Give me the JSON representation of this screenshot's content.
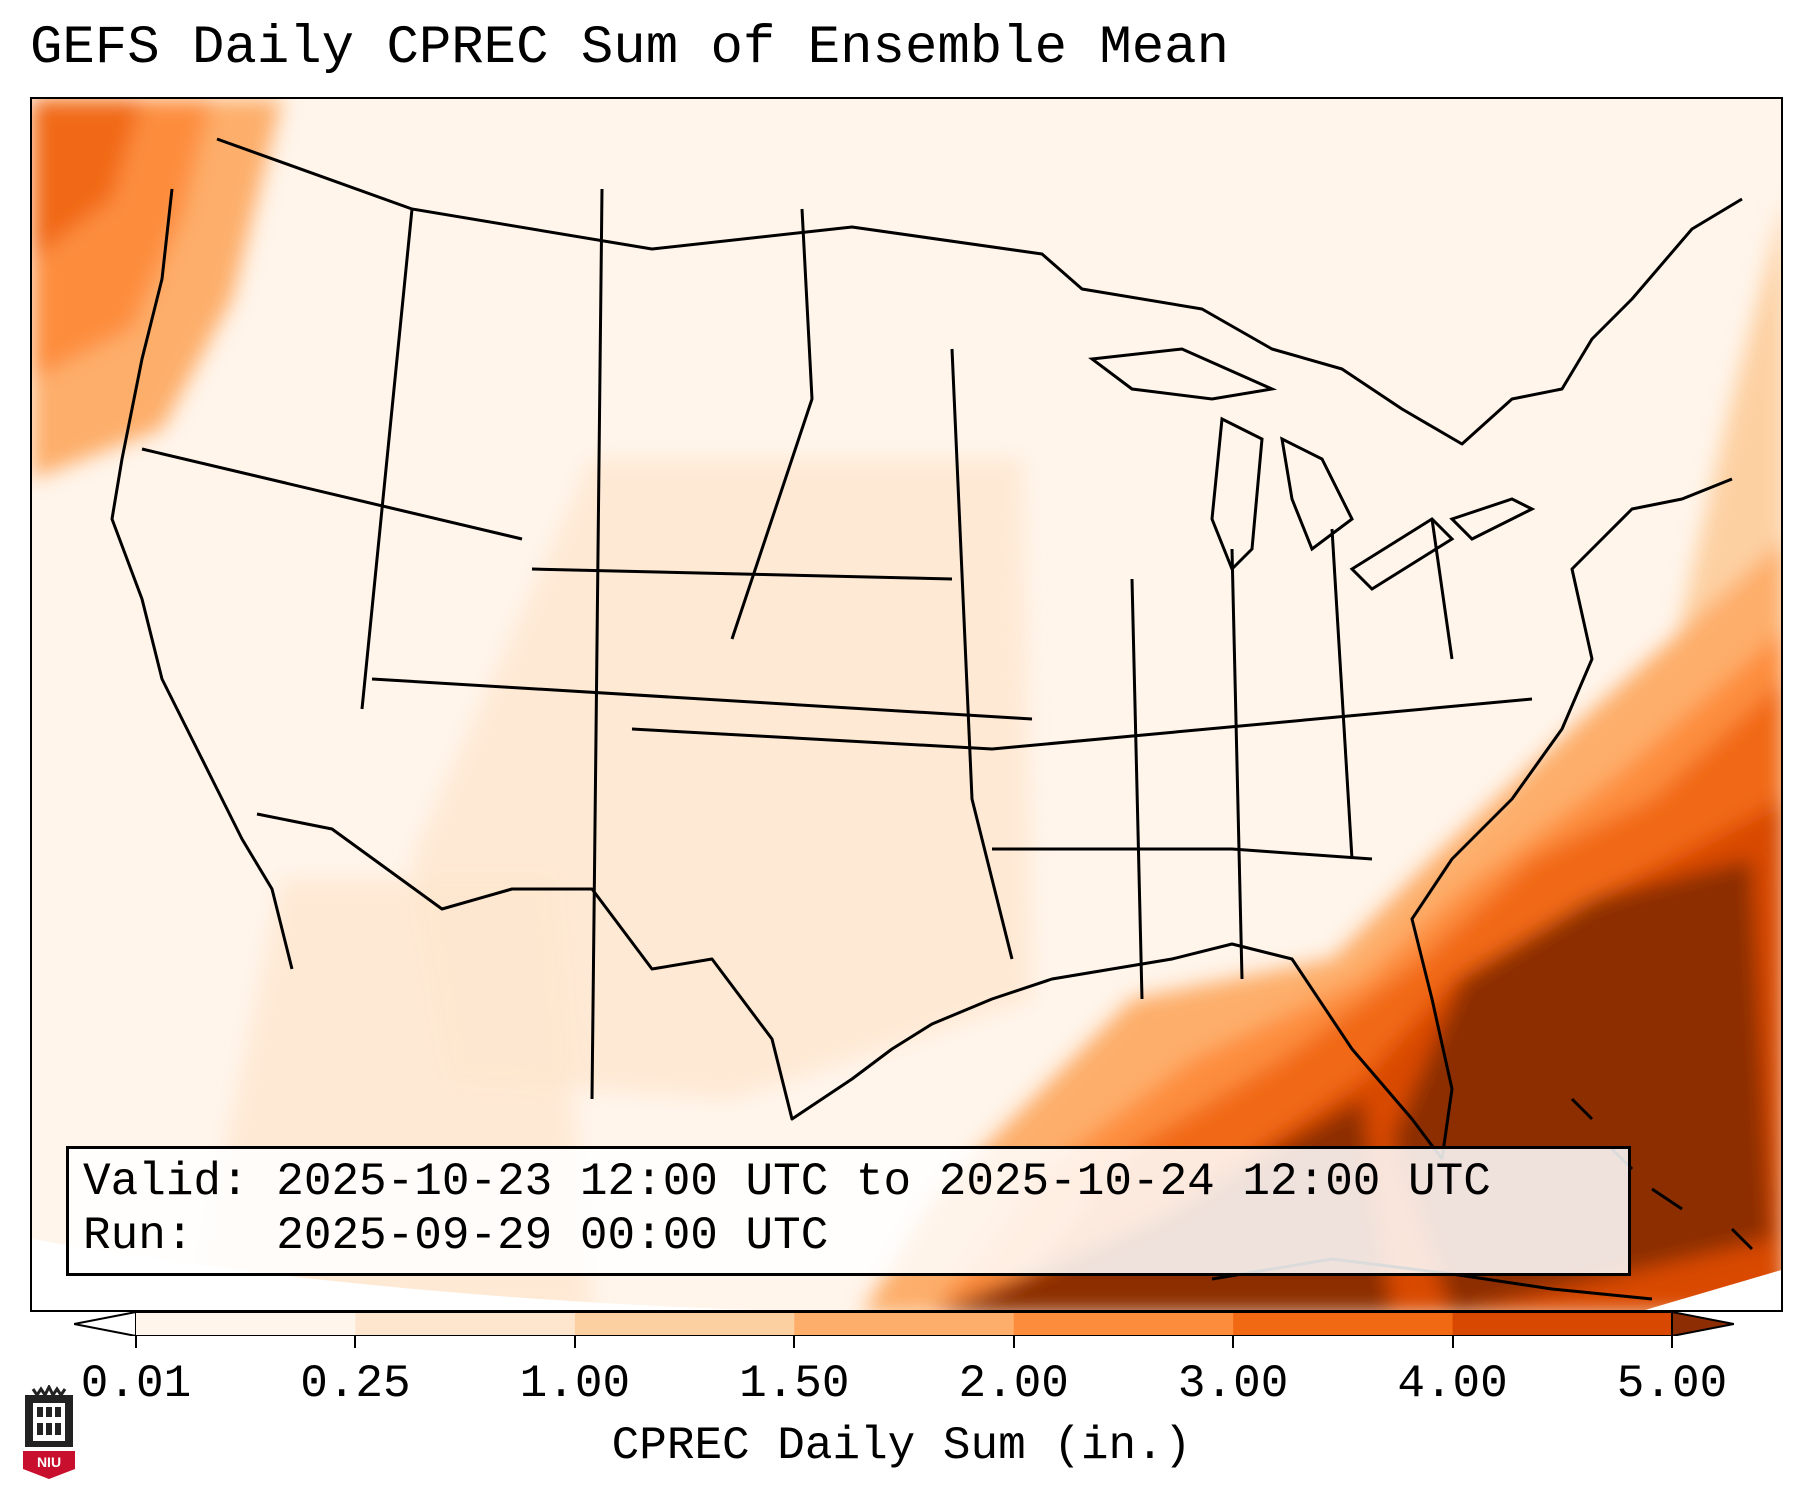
{
  "title": "GEFS Daily CPREC Sum of Ensemble Mean",
  "info": {
    "valid_line": "Valid: 2025-10-23 12:00 UTC to 2025-10-24 12:00 UTC",
    "run_line": "Run:   2025-09-29 00:00 UTC"
  },
  "colorbar": {
    "label": "CPREC Daily Sum (in.)",
    "ticks": [
      "0.01",
      "0.25",
      "1.00",
      "1.50",
      "2.00",
      "3.00",
      "4.00",
      "5.00"
    ],
    "colors": [
      "#fff5eb",
      "#fee6ce",
      "#fdd0a2",
      "#fdae6b",
      "#fd8d3c",
      "#f16913",
      "#d94801",
      "#8c2d04"
    ]
  },
  "logo": {
    "text": "NIU",
    "color": "#c8102e"
  },
  "map": {
    "projection": "Lambert conformal, CONUS",
    "features": [
      "US state borders",
      "Canada provinces",
      "Mexico coastline",
      "Great Lakes",
      "Cuba",
      "Bahamas"
    ],
    "precip_summary": [
      {
        "region": "Southeast US coast / Florida / Gulf of Mexico / Atlantic",
        "level": "3.00-5.00+"
      },
      {
        "region": "Pacific Northwest coast (Washington/Oregon)",
        "level": "1.00-3.00"
      },
      {
        "region": "Atlantic off New England",
        "level": "1.00-2.00"
      },
      {
        "region": "Interior US",
        "level": "0.01-0.25"
      }
    ]
  }
}
